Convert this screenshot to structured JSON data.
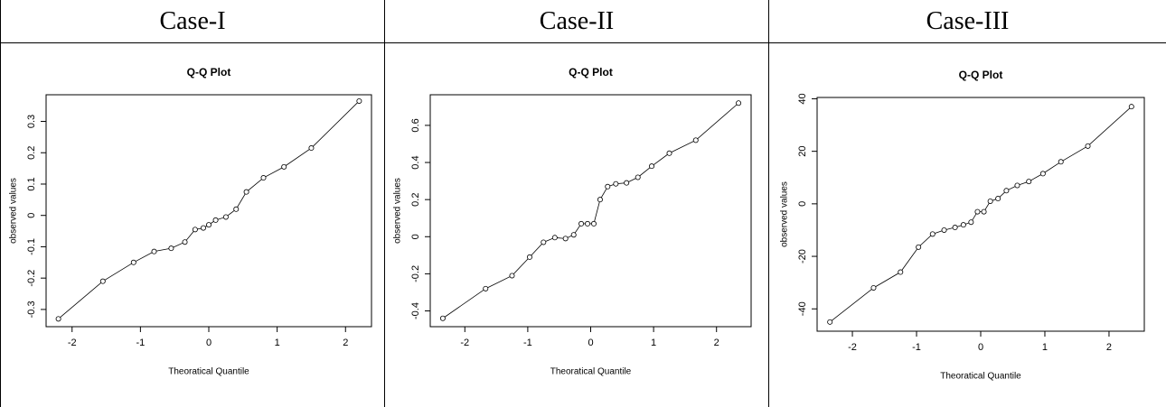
{
  "chart_data": [
    {
      "type": "line",
      "caption": "Case-I",
      "title": "Q-Q Plot",
      "xlabel": "Theoratical Quantile",
      "ylabel": "observed values",
      "x": [
        -2.2,
        -1.55,
        -1.1,
        -0.8,
        -0.55,
        -0.35,
        -0.2,
        -0.08,
        0.0,
        0.1,
        0.25,
        0.4,
        0.55,
        0.8,
        1.1,
        1.5,
        2.2
      ],
      "values": [
        -0.33,
        -0.21,
        -0.15,
        -0.115,
        -0.105,
        -0.085,
        -0.045,
        -0.04,
        -0.03,
        -0.015,
        -0.005,
        0.02,
        0.075,
        0.12,
        0.155,
        0.215,
        0.365
      ],
      "xlim": [
        -2.38,
        2.38
      ],
      "ylim": [
        -0.355,
        0.385
      ],
      "xticks": [
        -2,
        -1,
        0,
        1,
        2
      ],
      "yticks": [
        -0.3,
        -0.2,
        -0.1,
        0.0,
        0.1,
        0.2,
        0.3
      ],
      "color": "#000000"
    },
    {
      "type": "line",
      "caption": "Case-II",
      "title": "Q-Q Plot",
      "xlabel": "Theoratical Quantile",
      "ylabel": "observed values",
      "x": [
        -2.35,
        -1.67,
        -1.25,
        -0.97,
        -0.75,
        -0.57,
        -0.4,
        -0.27,
        -0.15,
        -0.05,
        0.05,
        0.15,
        0.27,
        0.4,
        0.57,
        0.75,
        0.97,
        1.25,
        1.67,
        2.35
      ],
      "values": [
        -0.44,
        -0.28,
        -0.21,
        -0.11,
        -0.03,
        -0.005,
        -0.01,
        0.01,
        0.07,
        0.07,
        0.07,
        0.2,
        0.27,
        0.285,
        0.29,
        0.32,
        0.38,
        0.45,
        0.52,
        0.72
      ],
      "xlim": [
        -2.55,
        2.55
      ],
      "ylim": [
        -0.485,
        0.765
      ],
      "xticks": [
        -2,
        -1,
        0,
        1,
        2
      ],
      "yticks": [
        -0.4,
        -0.2,
        0.0,
        0.2,
        0.4,
        0.6
      ],
      "color": "#000000"
    },
    {
      "type": "line",
      "caption": "Case-III",
      "title": "Q-Q Plot",
      "xlabel": "Theoratical Quantile",
      "ylabel": "observed values",
      "x": [
        -2.35,
        -1.67,
        -1.25,
        -0.97,
        -0.75,
        -0.57,
        -0.4,
        -0.27,
        -0.15,
        -0.05,
        0.05,
        0.15,
        0.27,
        0.4,
        0.57,
        0.75,
        0.97,
        1.25,
        1.67,
        2.35
      ],
      "values": [
        -45,
        -32,
        -26,
        -16.5,
        -11.5,
        -10,
        -9,
        -8,
        -7,
        -3,
        -3,
        1,
        2,
        5,
        7,
        8.5,
        11.5,
        16,
        22,
        37
      ],
      "xlim": [
        -2.55,
        2.55
      ],
      "ylim": [
        -48.5,
        40.5
      ],
      "xticks": [
        -2,
        -1,
        0,
        1,
        2
      ],
      "yticks": [
        -40,
        -20,
        0,
        20,
        40
      ],
      "color": "#000000"
    }
  ]
}
